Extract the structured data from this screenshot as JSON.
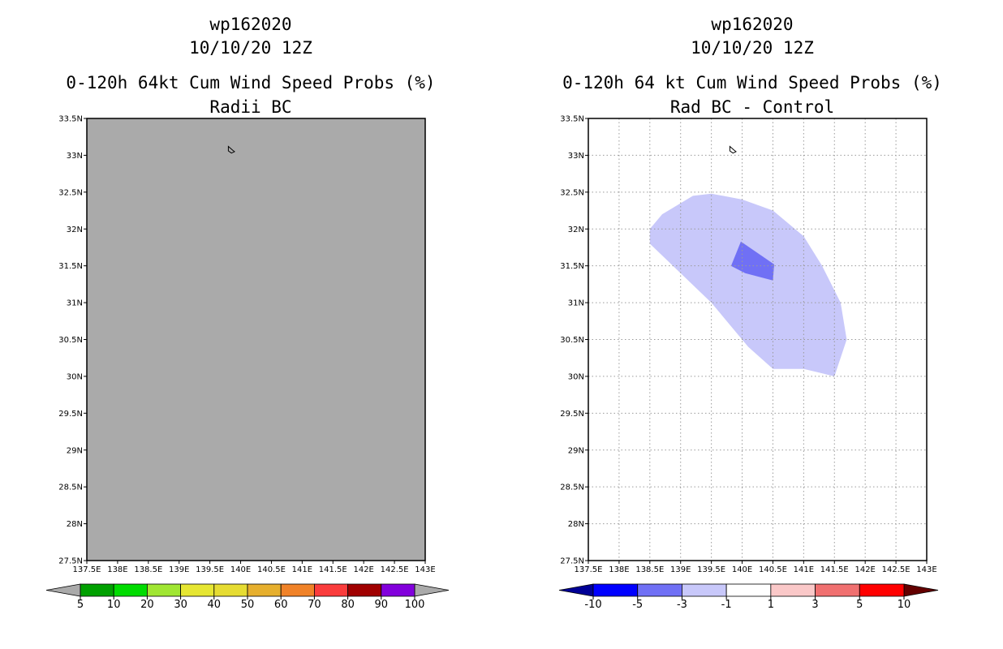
{
  "left": {
    "title1": "wp162020",
    "title2": "10/10/20 12Z",
    "title3": "0-120h 64kt Cum Wind Speed Probs (%)",
    "title4": "Radii BC",
    "field_color": "#aaaaaa",
    "colorbar": {
      "labels": [
        "5",
        "10",
        "20",
        "30",
        "40",
        "50",
        "60",
        "70",
        "80",
        "90",
        "100"
      ],
      "colors": [
        "#00a000",
        "#00dc00",
        "#a0e632",
        "#e6e632",
        "#e6dc32",
        "#e6af2d",
        "#f08228",
        "#fa3c3c",
        "#a00000",
        "#8200dc"
      ],
      "under_color": "#aaaaaa",
      "over_color": "#aaaaaa"
    }
  },
  "right": {
    "title1": "wp162020",
    "title2": "10/10/20 12Z",
    "title3": "0-120h 64 kt Cum Wind Speed Probs (%)",
    "title4": "Rad BC - Control",
    "colorbar": {
      "labels": [
        "-10",
        "-5",
        "-3",
        "-1",
        "1",
        "3",
        "5",
        "10"
      ],
      "colors": [
        "#0000ff",
        "#7070f5",
        "#c8c8fa",
        "#ffffff",
        "#fac8c8",
        "#f07070",
        "#ff0000"
      ],
      "under_color": "#000096",
      "over_color": "#640000"
    }
  },
  "axes": {
    "lon_labels": [
      "137.5E",
      "138E",
      "138.5E",
      "139E",
      "139.5E",
      "140E",
      "140.5E",
      "141E",
      "141.5E",
      "142E",
      "142.5E",
      "143E"
    ],
    "lat_labels": [
      "27.5N",
      "28N",
      "28.5N",
      "29N",
      "29.5N",
      "30N",
      "30.5N",
      "31N",
      "31.5N",
      "32N",
      "32.5N",
      "33N",
      "33.5N"
    ],
    "lon_min": 137.5,
    "lon_max": 143,
    "lat_min": 27.5,
    "lat_max": 33.5
  },
  "island": [
    [
      139.8,
      33.12
    ],
    [
      139.87,
      33.07
    ],
    [
      139.9,
      33.05
    ],
    [
      139.85,
      33.03
    ],
    [
      139.8,
      33.06
    ]
  ],
  "diff_regions": [
    {
      "category": "-3 to -1",
      "color": "#c8c8fa",
      "polygon": [
        [
          138.5,
          32.0
        ],
        [
          138.7,
          32.2
        ],
        [
          139.2,
          32.45
        ],
        [
          139.5,
          32.48
        ],
        [
          140.0,
          32.4
        ],
        [
          140.5,
          32.25
        ],
        [
          141.0,
          31.9
        ],
        [
          141.3,
          31.5
        ],
        [
          141.6,
          31.0
        ],
        [
          141.7,
          30.5
        ],
        [
          141.5,
          30.0
        ],
        [
          141.0,
          30.1
        ],
        [
          140.5,
          30.1
        ],
        [
          140.1,
          30.4
        ],
        [
          139.5,
          31.0
        ],
        [
          139.0,
          31.4
        ],
        [
          138.5,
          31.8
        ]
      ]
    },
    {
      "category": "-5 to -3",
      "color": "#7070f5",
      "polygon": [
        [
          139.98,
          31.83
        ],
        [
          140.52,
          31.52
        ],
        [
          140.5,
          31.3
        ],
        [
          140.05,
          31.4
        ],
        [
          139.82,
          31.5
        ]
      ]
    }
  ]
}
